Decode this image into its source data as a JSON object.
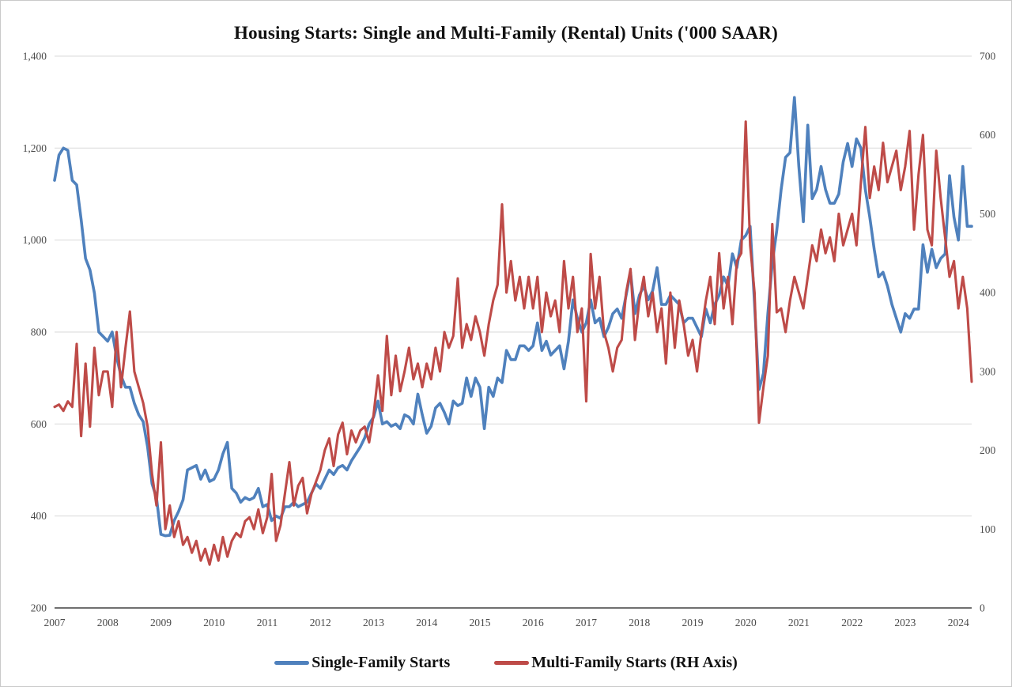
{
  "title": "Housing Starts: Single and Multi-Family (Rental) Units  ('000 SAAR)",
  "legend": [
    {
      "label": "Single-Family Starts",
      "color": "#4f81bd"
    },
    {
      "label": "Multi-Family Starts (RH Axis)",
      "color": "#be4b48"
    }
  ],
  "chart_data": {
    "type": "line",
    "x_start": {
      "year": 2007,
      "month": 1
    },
    "x_end": {
      "year": 2024,
      "month": 4
    },
    "frequency": "monthly",
    "grid": "horizontal",
    "legend_position": "bottom",
    "x_tick_labels": [
      "2007",
      "2008",
      "2009",
      "2010",
      "2011",
      "2012",
      "2013",
      "2014",
      "2015",
      "2016",
      "2017",
      "2018",
      "2019",
      "2020",
      "2021",
      "2022",
      "2023",
      "2024"
    ],
    "left_axis": {
      "min": 200,
      "max": 1400,
      "step": 200,
      "tick_labels": [
        "200",
        "400",
        "600",
        "800",
        "1,000",
        "1,200",
        "1,400"
      ]
    },
    "right_axis": {
      "min": 0,
      "max": 700,
      "step": 100,
      "tick_labels": [
        "0",
        "100",
        "200",
        "300",
        "400",
        "500",
        "600",
        "700"
      ]
    },
    "series": [
      {
        "name": "Single-Family Starts",
        "axis": "left",
        "color": "#4f81bd",
        "values": [
          1130,
          1185,
          1200,
          1195,
          1130,
          1120,
          1045,
          960,
          935,
          885,
          800,
          790,
          780,
          800,
          745,
          705,
          680,
          680,
          645,
          620,
          605,
          550,
          470,
          440,
          360,
          357,
          358,
          390,
          410,
          435,
          500,
          505,
          510,
          480,
          500,
          475,
          480,
          500,
          535,
          560,
          460,
          450,
          430,
          440,
          435,
          440,
          460,
          420,
          425,
          390,
          400,
          395,
          420,
          420,
          430,
          420,
          425,
          430,
          450,
          470,
          460,
          480,
          500,
          490,
          505,
          510,
          500,
          520,
          535,
          550,
          570,
          600,
          615,
          650,
          600,
          605,
          595,
          600,
          590,
          620,
          615,
          600,
          665,
          620,
          580,
          595,
          635,
          645,
          625,
          600,
          650,
          640,
          645,
          700,
          660,
          700,
          680,
          590,
          680,
          660,
          700,
          690,
          760,
          740,
          740,
          770,
          770,
          760,
          770,
          820,
          760,
          780,
          750,
          760,
          770,
          720,
          780,
          870,
          830,
          800,
          820,
          870,
          820,
          830,
          790,
          810,
          840,
          850,
          830,
          880,
          930,
          840,
          880,
          900,
          870,
          890,
          940,
          860,
          860,
          880,
          870,
          860,
          820,
          830,
          830,
          810,
          790,
          850,
          820,
          860,
          880,
          920,
          900,
          970,
          940,
          1000,
          1010,
          1030,
          860,
          675,
          710,
          840,
          950,
          1020,
          1110,
          1180,
          1190,
          1310,
          1160,
          1040,
          1250,
          1090,
          1110,
          1160,
          1110,
          1080,
          1080,
          1100,
          1170,
          1210,
          1160,
          1220,
          1200,
          1110,
          1050,
          980,
          920,
          930,
          900,
          860,
          830,
          800,
          840,
          830,
          850,
          850,
          990,
          930,
          980,
          940,
          960,
          970,
          1140,
          1050,
          1000,
          1160,
          1030,
          1030
        ]
      },
      {
        "name": "Multi-Family Starts (RH Axis)",
        "axis": "right",
        "color": "#be4b48",
        "values": [
          255,
          258,
          250,
          262,
          255,
          335,
          218,
          310,
          230,
          330,
          270,
          300,
          300,
          255,
          350,
          280,
          330,
          376,
          300,
          280,
          260,
          230,
          170,
          130,
          210,
          100,
          130,
          90,
          110,
          80,
          90,
          70,
          85,
          60,
          75,
          55,
          80,
          60,
          90,
          65,
          85,
          95,
          90,
          110,
          115,
          100,
          125,
          95,
          115,
          170,
          85,
          105,
          145,
          185,
          130,
          155,
          165,
          120,
          145,
          160,
          175,
          200,
          215,
          180,
          220,
          235,
          195,
          225,
          210,
          225,
          230,
          210,
          245,
          295,
          250,
          345,
          270,
          320,
          275,
          300,
          330,
          290,
          310,
          280,
          310,
          290,
          330,
          300,
          350,
          330,
          345,
          418,
          330,
          360,
          340,
          370,
          350,
          320,
          360,
          390,
          410,
          512,
          400,
          440,
          390,
          420,
          380,
          420,
          380,
          420,
          350,
          400,
          370,
          390,
          350,
          440,
          380,
          420,
          350,
          380,
          262,
          449,
          380,
          420,
          350,
          330,
          300,
          330,
          340,
          400,
          430,
          340,
          390,
          420,
          370,
          400,
          350,
          380,
          310,
          400,
          330,
          390,
          360,
          320,
          340,
          300,
          350,
          390,
          420,
          360,
          450,
          380,
          420,
          360,
          440,
          450,
          617,
          460,
          400,
          235,
          280,
          320,
          487,
          375,
          380,
          350,
          390,
          420,
          400,
          380,
          420,
          460,
          440,
          480,
          450,
          470,
          440,
          500,
          460,
          480,
          500,
          460,
          540,
          610,
          520,
          560,
          530,
          590,
          540,
          560,
          580,
          530,
          560,
          605,
          480,
          550,
          600,
          480,
          460,
          580,
          520,
          470,
          420,
          440,
          380,
          420,
          380,
          287
        ]
      }
    ]
  }
}
